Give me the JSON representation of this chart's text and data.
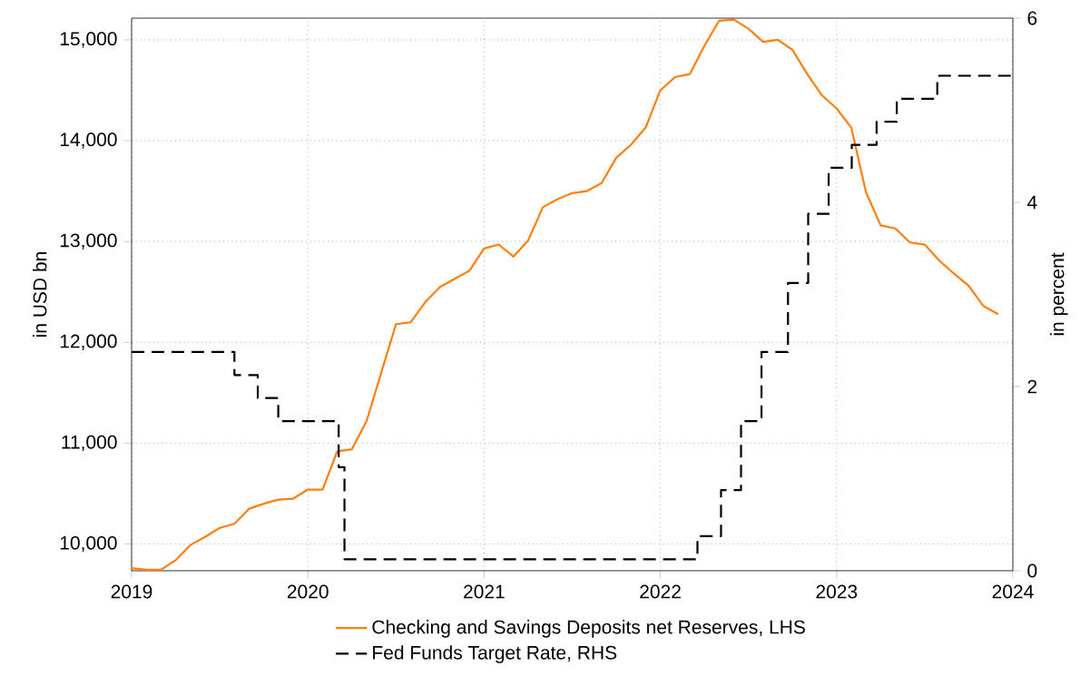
{
  "chart_data": {
    "type": "line",
    "ylabel": "in USD bn",
    "y2label": "in percent",
    "xlim": [
      "2019",
      "2024"
    ],
    "xticks": [
      {
        "value": "2019",
        "label": "2019"
      },
      {
        "value": "2020",
        "label": "2020"
      },
      {
        "value": "2021",
        "label": "2021"
      },
      {
        "value": "2022",
        "label": "2022"
      },
      {
        "value": "2023",
        "label": "2023"
      },
      {
        "value": "2024",
        "label": "2024"
      }
    ],
    "ylim": [
      9735,
      15215
    ],
    "yticks": [
      {
        "value": 10000,
        "label": "10,000"
      },
      {
        "value": 11000,
        "label": "11,000"
      },
      {
        "value": 12000,
        "label": "12,000"
      },
      {
        "value": 13000,
        "label": "13,000"
      },
      {
        "value": 14000,
        "label": "14,000"
      },
      {
        "value": 15000,
        "label": "15,000"
      }
    ],
    "y2lim": [
      0,
      6
    ],
    "y2ticks": [
      0,
      2,
      4,
      6
    ],
    "grid": true,
    "legend": "bottom",
    "marker": "none",
    "series": [
      {
        "name": "Checking and Savings Deposits net Reserves, LHS",
        "color": "#ff7f0e",
        "line_style": "solid",
        "x": [
          "2019-01",
          "2019-02",
          "2019-03",
          "2019-04",
          "2019-05",
          "2019-06",
          "2019-07",
          "2019-08",
          "2019-09",
          "2019-10",
          "2019-11",
          "2019-12",
          "2020-01",
          "2020-02",
          "2020-03",
          "2020-04",
          "2020-05",
          "2020-06",
          "2020-07",
          "2020-08",
          "2020-09",
          "2020-10",
          "2020-11",
          "2020-12",
          "2021-01",
          "2021-02",
          "2021-03",
          "2021-04",
          "2021-05",
          "2021-06",
          "2021-07",
          "2021-08",
          "2021-09",
          "2021-10",
          "2021-11",
          "2021-12",
          "2022-01",
          "2022-02",
          "2022-03",
          "2022-04",
          "2022-05",
          "2022-06",
          "2022-07",
          "2022-08",
          "2022-09",
          "2022-10",
          "2022-11",
          "2022-12",
          "2023-01",
          "2023-02",
          "2023-03",
          "2023-04",
          "2023-05",
          "2023-06",
          "2023-07",
          "2023-08",
          "2023-09",
          "2023-10",
          "2023-11",
          "2023-12"
        ],
        "values": [
          9760,
          9745,
          9745,
          9840,
          9990,
          10070,
          10160,
          10200,
          10350,
          10400,
          10440,
          10450,
          10540,
          10540,
          10920,
          10940,
          11220,
          11700,
          12180,
          12200,
          12400,
          12550,
          12630,
          12710,
          12930,
          12970,
          12850,
          13010,
          13340,
          13420,
          13480,
          13500,
          13580,
          13830,
          13960,
          14130,
          14500,
          14630,
          14660,
          14940,
          15190,
          15200,
          15110,
          14980,
          15000,
          14900,
          14660,
          14450,
          14320,
          14130,
          13490,
          13160,
          13130,
          12990,
          12970,
          12810,
          12680,
          12560,
          12360,
          12280
        ]
      },
      {
        "name": "Fed Funds Target Rate, RHS",
        "color": "#000000",
        "type": "step",
        "axis": "y2",
        "line_style": "dashed",
        "x": [
          "2019-01-01",
          "2019-08-01",
          "2019-09-19",
          "2019-10-31",
          "2020-03-04",
          "2020-03-16",
          "2022-03-17",
          "2022-05-05",
          "2022-06-16",
          "2022-07-28",
          "2022-09-22",
          "2022-11-03",
          "2022-12-15",
          "2023-02-02",
          "2023-03-23",
          "2023-05-04",
          "2023-07-27",
          "2024-01-01"
        ],
        "values": [
          2.375,
          2.125,
          1.875,
          1.625,
          1.125,
          0.125,
          0.375,
          0.875,
          1.625,
          2.375,
          3.125,
          3.875,
          4.375,
          4.625,
          4.875,
          5.125,
          5.375,
          5.375
        ]
      }
    ]
  }
}
